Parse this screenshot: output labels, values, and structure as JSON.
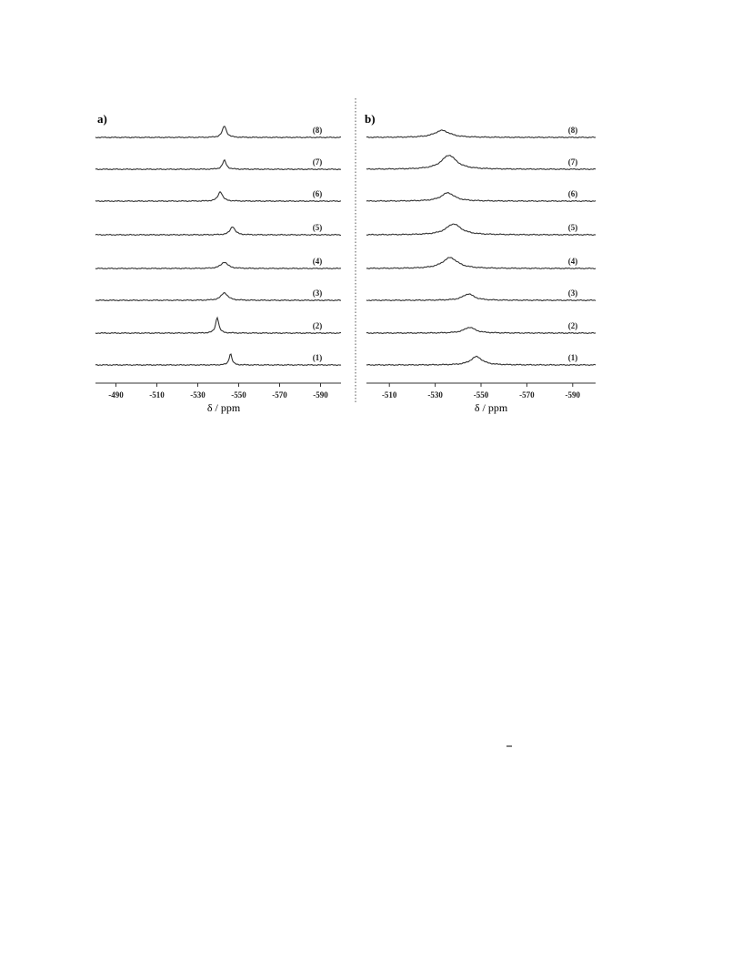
{
  "chart_data": [
    {
      "type": "line",
      "panel_label": "a)",
      "xlabel": "δ / ppm",
      "ylabel": "",
      "xlim": [
        -480,
        -600
      ],
      "x_reversed": true,
      "tick_values": [
        -490,
        -510,
        -530,
        -550,
        -570,
        -590
      ],
      "tick_labels": [
        "-490",
        "-510",
        "-530",
        "-550",
        "-570",
        "-590"
      ],
      "grid": false,
      "series": [
        {
          "name": "(1)",
          "peak_ppm": -546.0,
          "height": 0.9,
          "width_ppm": 0.8
        },
        {
          "name": "(2)",
          "peak_ppm": -539.5,
          "height": 1.25,
          "width_ppm": 0.9
        },
        {
          "name": "(3)",
          "peak_ppm": -543.0,
          "height": 0.6,
          "width_ppm": 1.9
        },
        {
          "name": "(4)",
          "peak_ppm": -543.0,
          "height": 0.5,
          "width_ppm": 2.0
        },
        {
          "name": "(5)",
          "peak_ppm": -547.0,
          "height": 0.65,
          "width_ppm": 1.4
        },
        {
          "name": "(6)",
          "peak_ppm": -541.0,
          "height": 0.75,
          "width_ppm": 1.3
        },
        {
          "name": "(7)",
          "peak_ppm": -543.0,
          "height": 0.7,
          "width_ppm": 1.1
        },
        {
          "name": "(8)",
          "peak_ppm": -543.0,
          "height": 0.9,
          "width_ppm": 1.2
        }
      ]
    },
    {
      "type": "line",
      "panel_label": "b)",
      "xlabel": "δ / ppm",
      "ylabel": "",
      "xlim": [
        -500,
        -600
      ],
      "x_reversed": true,
      "tick_values": [
        -510,
        -530,
        -550,
        -570,
        -590
      ],
      "tick_labels": [
        "-510",
        "-530",
        "-550",
        "-570",
        "-590"
      ],
      "grid": false,
      "series": [
        {
          "name": "(1)",
          "peak_ppm": -548.0,
          "height": 0.65,
          "width_ppm": 3.0
        },
        {
          "name": "(2)",
          "peak_ppm": -545.0,
          "height": 0.45,
          "width_ppm": 3.0
        },
        {
          "name": "(3)",
          "peak_ppm": -544.5,
          "height": 0.5,
          "width_ppm": 3.0
        },
        {
          "name": "(4)",
          "peak_ppm": -536.5,
          "height": 0.85,
          "width_ppm": 4.0
        },
        {
          "name": "(5)",
          "peak_ppm": -538.0,
          "height": 0.85,
          "width_ppm": 4.0
        },
        {
          "name": "(6)",
          "peak_ppm": -535.5,
          "height": 0.65,
          "width_ppm": 3.5
        },
        {
          "name": "(7)",
          "peak_ppm": -536.0,
          "height": 1.1,
          "width_ppm": 4.0
        },
        {
          "name": "(8)",
          "peak_ppm": -533.0,
          "height": 0.55,
          "width_ppm": 4.0
        }
      ]
    }
  ]
}
